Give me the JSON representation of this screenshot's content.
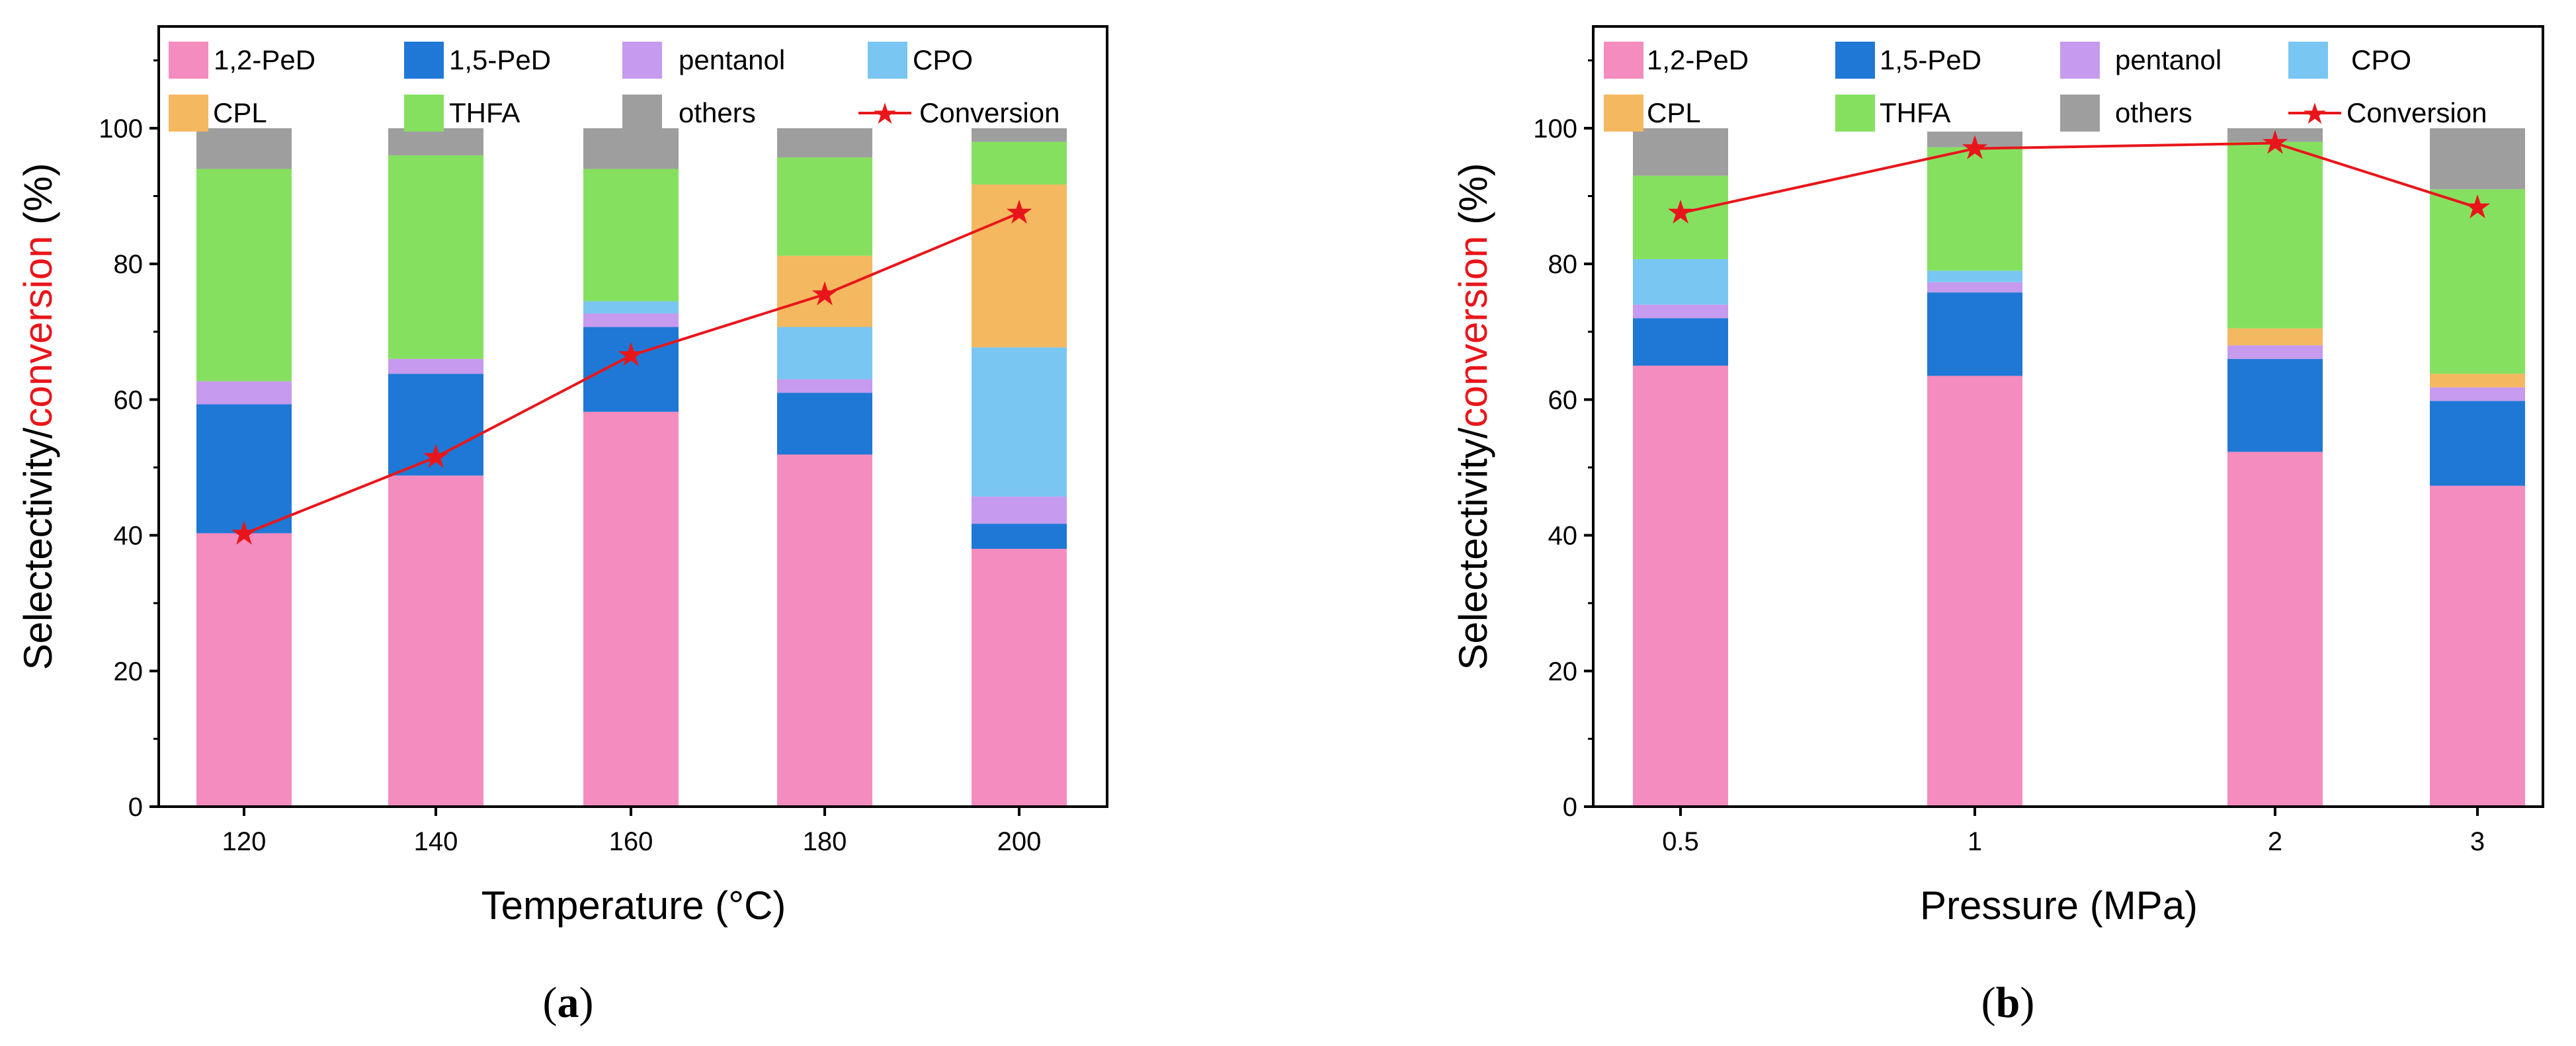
{
  "chart_data": [
    {
      "type": "bar",
      "stacked": true,
      "panel_label": "(a)",
      "panel_letter": "a",
      "categories": [
        "120",
        "140",
        "160",
        "180",
        "200"
      ],
      "xlabel": "Temperature (°C)",
      "ylabel_part1": "Selectectivity/",
      "ylabel_part2": "conversion",
      "ylabel_part3": " (%)",
      "ylim": [
        0,
        115
      ],
      "yticks": [
        0,
        20,
        40,
        60,
        80,
        100
      ],
      "series": [
        {
          "name": "1,2-PeD",
          "color": "#f58cbf",
          "values": [
            40.3,
            48.8,
            58.2,
            51.9,
            38.0
          ]
        },
        {
          "name": "1,5-PeD",
          "color": "#1f78d6",
          "values": [
            19.0,
            15.0,
            12.5,
            9.1,
            3.7
          ]
        },
        {
          "name": "pentanol",
          "color": "#c69aee",
          "values": [
            3.4,
            2.2,
            2.0,
            2.0,
            4.0
          ]
        },
        {
          "name": "CPO",
          "color": "#79c6f2",
          "values": [
            0.0,
            0.0,
            1.8,
            7.7,
            22.0
          ]
        },
        {
          "name": "CPL",
          "color": "#f4b860",
          "values": [
            0.0,
            0.0,
            0.0,
            10.5,
            24.0
          ]
        },
        {
          "name": "THFA",
          "color": "#86e060",
          "values": [
            31.3,
            30.0,
            19.5,
            14.5,
            6.3
          ]
        },
        {
          "name": "others",
          "color": "#9e9e9e",
          "values": [
            6.0,
            4.0,
            6.0,
            4.3,
            2.0
          ]
        }
      ],
      "line_series": {
        "name": "Conversion",
        "color": "#e8161b",
        "values": [
          40.2,
          51.5,
          66.5,
          75.5,
          87.5
        ]
      }
    },
    {
      "type": "bar",
      "stacked": true,
      "panel_label": "(b)",
      "panel_letter": "b",
      "categories": [
        "0.5",
        "1",
        "2",
        "3"
      ],
      "xlabel": "Pressure (MPa)",
      "ylabel_part1": "Selectectivity/",
      "ylabel_part2": "conversion",
      "ylabel_part3": " (%)",
      "ylim": [
        0,
        115
      ],
      "yticks": [
        0,
        20,
        40,
        60,
        80,
        100
      ],
      "series": [
        {
          "name": "1,2-PeD",
          "color": "#f58cbf",
          "values": [
            65.0,
            63.5,
            52.3,
            47.3
          ]
        },
        {
          "name": "1,5-PeD",
          "color": "#1f78d6",
          "values": [
            7.0,
            12.3,
            13.7,
            12.5
          ]
        },
        {
          "name": "pentanol",
          "color": "#c69aee",
          "values": [
            2.0,
            1.5,
            2.0,
            2.0
          ]
        },
        {
          "name": "CPO",
          "color": "#79c6f2",
          "values": [
            6.7,
            1.7,
            0.0,
            0.0
          ]
        },
        {
          "name": "CPL",
          "color": "#f4b860",
          "values": [
            0.0,
            0.0,
            2.5,
            2.0
          ]
        },
        {
          "name": "THFA",
          "color": "#86e060",
          "values": [
            12.3,
            18.2,
            27.5,
            27.2
          ]
        },
        {
          "name": "others",
          "color": "#9e9e9e",
          "values": [
            7.0,
            2.3,
            2.0,
            9.0
          ]
        }
      ],
      "line_series": {
        "name": "Conversion",
        "color": "#e8161b",
        "values": [
          87.5,
          97.0,
          97.8,
          88.3
        ]
      }
    }
  ]
}
